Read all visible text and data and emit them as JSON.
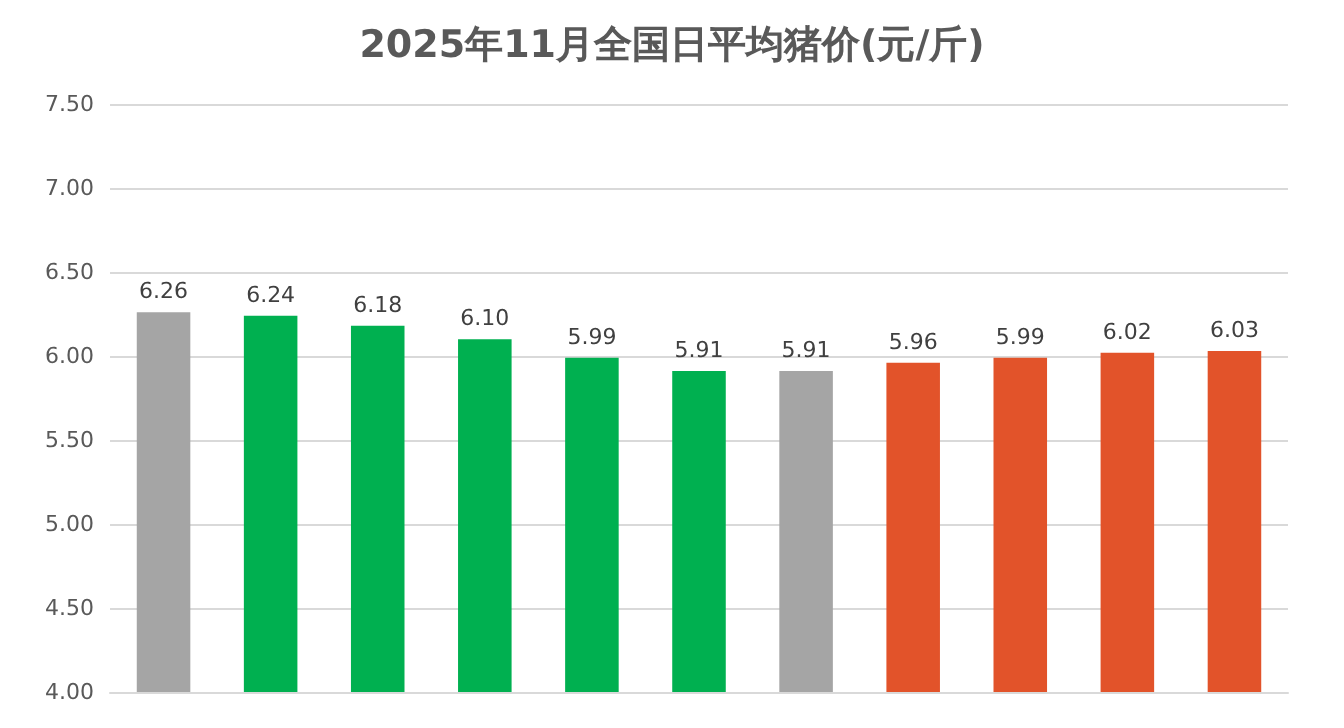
{
  "chart_data": {
    "type": "bar",
    "title": "2025年11月全国日平均猪价(元/斤)",
    "categories": [
      null,
      null,
      null,
      null,
      null,
      null,
      null,
      null,
      null,
      null,
      null
    ],
    "values": [
      6.26,
      6.24,
      6.18,
      6.1,
      5.99,
      5.91,
      5.91,
      5.96,
      5.99,
      6.02,
      6.03
    ],
    "colors": [
      "#a5a5a5",
      "#00b050",
      "#00b050",
      "#00b050",
      "#00b050",
      "#00b050",
      "#a5a5a5",
      "#e2532a",
      "#e2532a",
      "#e2532a",
      "#e2532a"
    ],
    "value_labels": [
      "6.26",
      "6.24",
      "6.18",
      "6.10",
      "5.99",
      "5.91",
      "5.91",
      "5.96",
      "5.99",
      "6.02",
      "6.03"
    ],
    "ylim": [
      4,
      7.5
    ],
    "yticks": [
      {
        "value": 4,
        "label": "4.00"
      },
      {
        "value": 4.5,
        "label": "4.50"
      },
      {
        "value": 5,
        "label": "5.00"
      },
      {
        "value": 5.5,
        "label": "5.50"
      },
      {
        "value": 6,
        "label": "6.00"
      },
      {
        "value": 6.5,
        "label": "6.50"
      },
      {
        "value": 7,
        "label": "7.00"
      },
      {
        "value": 7.5,
        "label": "7.50"
      }
    ],
    "grid": true
  }
}
